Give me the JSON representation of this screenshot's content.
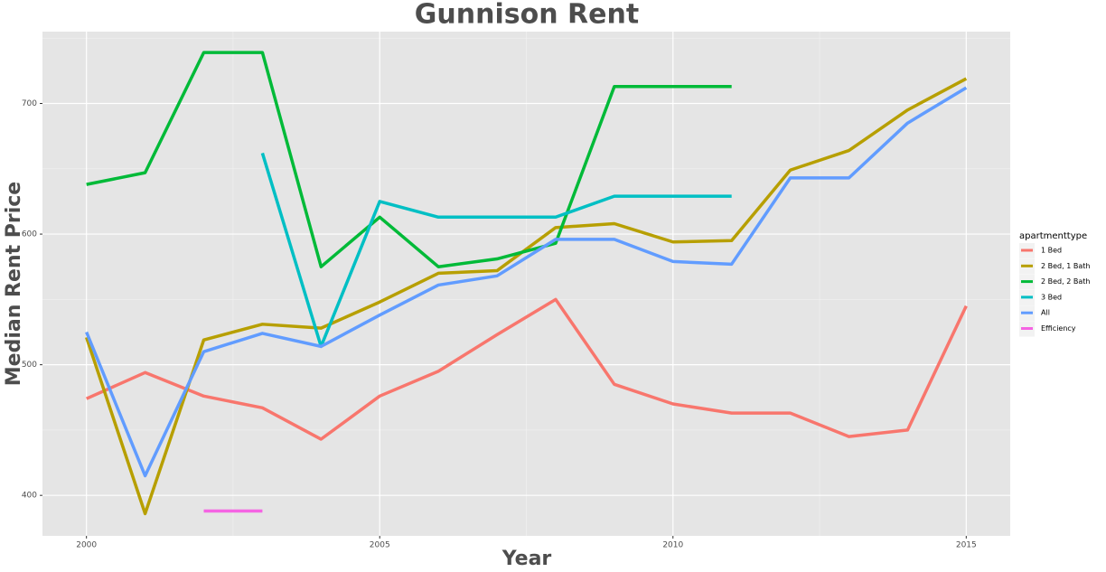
{
  "chart_data": {
    "type": "line",
    "title": "Gunnison Rent",
    "x_label": "Year",
    "y_label": "Median Rent Price",
    "x": [
      2000,
      2001,
      2002,
      2003,
      2004,
      2005,
      2006,
      2007,
      2008,
      2009,
      2010,
      2011,
      2012,
      2013,
      2014,
      2015
    ],
    "series": [
      {
        "name": "1 Bed",
        "color": "#F8766D",
        "values": [
          474,
          494,
          476,
          467,
          443,
          476,
          495,
          523,
          550,
          485,
          470,
          463,
          463,
          445,
          450,
          545
        ]
      },
      {
        "name": "2 Bed, 1 Bath",
        "color": "#B79F00",
        "values": [
          521,
          386,
          519,
          531,
          528,
          548,
          570,
          572,
          605,
          608,
          594,
          595,
          649,
          664,
          695,
          719
        ]
      },
      {
        "name": "2 Bed, 2 Bath",
        "color": "#00BA38",
        "values": [
          638,
          647,
          739,
          739,
          575,
          613,
          575,
          581,
          593,
          713,
          713,
          713,
          null,
          null,
          null,
          null
        ]
      },
      {
        "name": "3 Bed",
        "color": "#00BFC4",
        "values": [
          null,
          null,
          null,
          662,
          514,
          625,
          613,
          613,
          613,
          629,
          629,
          629,
          null,
          null,
          null,
          null
        ]
      },
      {
        "name": "All",
        "color": "#619CFF",
        "values": [
          525,
          415,
          510,
          524,
          514,
          538,
          561,
          568,
          596,
          596,
          579,
          577,
          643,
          643,
          685,
          712
        ]
      },
      {
        "name": "Efficiency",
        "color": "#F564E3",
        "values": [
          null,
          null,
          388,
          388,
          null,
          null,
          null,
          null,
          null,
          null,
          null,
          null,
          null,
          null,
          null,
          null
        ]
      }
    ],
    "legend_title": "apartmenttype",
    "xlim": [
      1999.25,
      2015.75
    ],
    "xticks": [
      2000,
      2005,
      2010,
      2015
    ],
    "ylim": [
      369,
      755
    ],
    "yticks": [
      400,
      500,
      600,
      700
    ],
    "grid": true,
    "legend": "right"
  }
}
